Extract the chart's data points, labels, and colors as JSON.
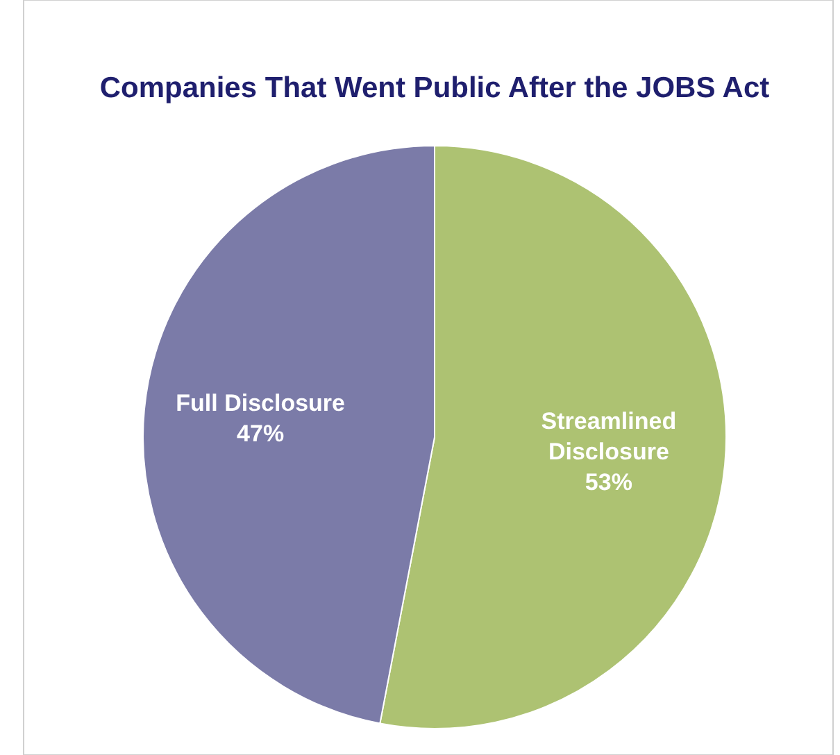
{
  "chart_data": {
    "type": "pie",
    "title": "Companies That Went Public After the JOBS Act",
    "categories": [
      "Streamlined Disclosure",
      "Full Disclosure"
    ],
    "values": [
      53,
      47
    ],
    "colors": [
      "#adc272",
      "#7b7ba8"
    ],
    "value_labels": [
      "53%",
      "47%"
    ]
  }
}
